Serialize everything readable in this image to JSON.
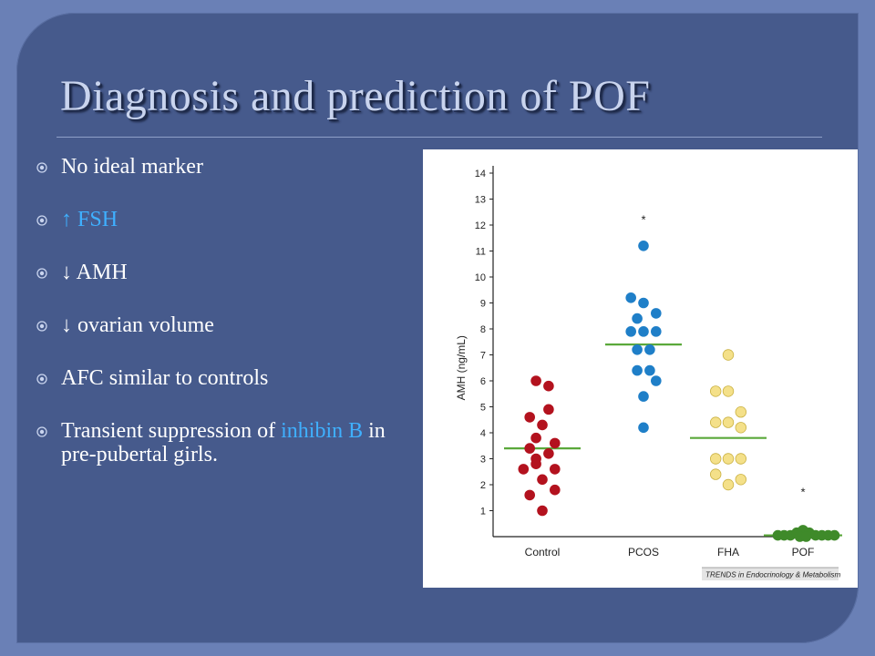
{
  "slide": {
    "title": "Diagnosis and prediction of POF",
    "bullets": [
      {
        "parts": [
          {
            "text": "No ideal marker"
          }
        ]
      },
      {
        "parts": [
          {
            "text": "↑ FSH",
            "highlight": true
          }
        ]
      },
      {
        "parts": [
          {
            "text": "↓ AMH"
          }
        ]
      },
      {
        "parts": [
          {
            "text": "↓ ovarian volume"
          }
        ]
      },
      {
        "parts": [
          {
            "text": "AFC similar to controls"
          }
        ]
      },
      {
        "parts": [
          {
            "text": "Transient suppression of "
          },
          {
            "text": "inhibin B",
            "highlight": true
          },
          {
            "text": " in pre-pubertal girls."
          }
        ]
      }
    ],
    "bullet_icon": "circled-dot-icon",
    "colors": {
      "background": "#465a8c",
      "text": "#ffffff",
      "highlight": "#3fb0ff",
      "title": "#c9d4ee"
    }
  },
  "chart_data": {
    "type": "scatter",
    "ylabel": "AMH (ng/mL)",
    "ylim": [
      0,
      14
    ],
    "yticks": [
      "1",
      "2",
      "3",
      "4",
      "5",
      "6",
      "7",
      "8",
      "9",
      "10",
      "11",
      "12",
      "13",
      "14"
    ],
    "categories": [
      "Control",
      "PCOS",
      "FHA",
      "POF"
    ],
    "source": "TRENDS in Endocrinology & Metabolism",
    "mean_line_color": "#5aa83a",
    "groups": [
      {
        "name": "Control",
        "color": "#b3121e",
        "mean": 3.4,
        "points": [
          {
            "dx": -0.6,
            "y": 6.0
          },
          {
            "dx": 0.6,
            "y": 5.8
          },
          {
            "dx": -1.2,
            "y": 4.6
          },
          {
            "dx": 0.6,
            "y": 4.9
          },
          {
            "dx": 0.0,
            "y": 4.3
          },
          {
            "dx": -0.6,
            "y": 3.8
          },
          {
            "dx": 1.2,
            "y": 3.6
          },
          {
            "dx": -1.2,
            "y": 3.4
          },
          {
            "dx": 0.6,
            "y": 3.2
          },
          {
            "dx": -0.6,
            "y": 3.0
          },
          {
            "dx": -1.8,
            "y": 2.6
          },
          {
            "dx": -0.6,
            "y": 2.8
          },
          {
            "dx": 1.2,
            "y": 2.6
          },
          {
            "dx": 0.0,
            "y": 2.2
          },
          {
            "dx": -1.2,
            "y": 1.6
          },
          {
            "dx": 1.2,
            "y": 1.8
          },
          {
            "dx": 0.0,
            "y": 1.0
          }
        ]
      },
      {
        "name": "PCOS",
        "color": "#1f7fc8",
        "mean": 7.4,
        "star": "*",
        "star_y": 12.2,
        "points": [
          {
            "dx": 0.0,
            "y": 11.2
          },
          {
            "dx": -1.2,
            "y": 9.2
          },
          {
            "dx": 0.0,
            "y": 9.0
          },
          {
            "dx": 1.2,
            "y": 8.6
          },
          {
            "dx": -0.6,
            "y": 8.4
          },
          {
            "dx": -1.2,
            "y": 7.9
          },
          {
            "dx": 0.0,
            "y": 7.9
          },
          {
            "dx": 1.2,
            "y": 7.9
          },
          {
            "dx": -0.6,
            "y": 7.2
          },
          {
            "dx": 0.6,
            "y": 7.2
          },
          {
            "dx": -0.6,
            "y": 6.4
          },
          {
            "dx": 0.6,
            "y": 6.4
          },
          {
            "dx": 1.2,
            "y": 6.0
          },
          {
            "dx": 0.0,
            "y": 5.4
          },
          {
            "dx": 0.0,
            "y": 4.2
          }
        ]
      },
      {
        "name": "FHA",
        "color": "#f4e089",
        "mean": 3.8,
        "points": [
          {
            "dx": 0.0,
            "y": 7.0
          },
          {
            "dx": -1.2,
            "y": 5.6
          },
          {
            "dx": 0.0,
            "y": 5.6
          },
          {
            "dx": 1.2,
            "y": 4.8
          },
          {
            "dx": -1.2,
            "y": 4.4
          },
          {
            "dx": 0.0,
            "y": 4.4
          },
          {
            "dx": 1.2,
            "y": 4.2
          },
          {
            "dx": -1.2,
            "y": 3.0
          },
          {
            "dx": 0.0,
            "y": 3.0
          },
          {
            "dx": 1.2,
            "y": 3.0
          },
          {
            "dx": -1.2,
            "y": 2.4
          },
          {
            "dx": 1.2,
            "y": 2.2
          },
          {
            "dx": 0.0,
            "y": 2.0
          }
        ]
      },
      {
        "name": "POF",
        "color": "#3f8a2a",
        "mean": 0.05,
        "star": "*",
        "star_y": 1.7,
        "points": [
          {
            "dx": -1.8,
            "y": 0.05
          },
          {
            "dx": -1.2,
            "y": 0.05
          },
          {
            "dx": -0.6,
            "y": 0.15
          },
          {
            "dx": 0.0,
            "y": 0.25
          },
          {
            "dx": 0.6,
            "y": 0.15
          },
          {
            "dx": 1.2,
            "y": 0.05
          },
          {
            "dx": 1.8,
            "y": 0.05
          },
          {
            "dx": -0.3,
            "y": 0.0
          },
          {
            "dx": 0.3,
            "y": 0.0
          },
          {
            "dx": 2.4,
            "y": 0.05
          },
          {
            "dx": -2.4,
            "y": 0.05
          },
          {
            "dx": 3.0,
            "y": 0.05
          }
        ]
      }
    ]
  }
}
